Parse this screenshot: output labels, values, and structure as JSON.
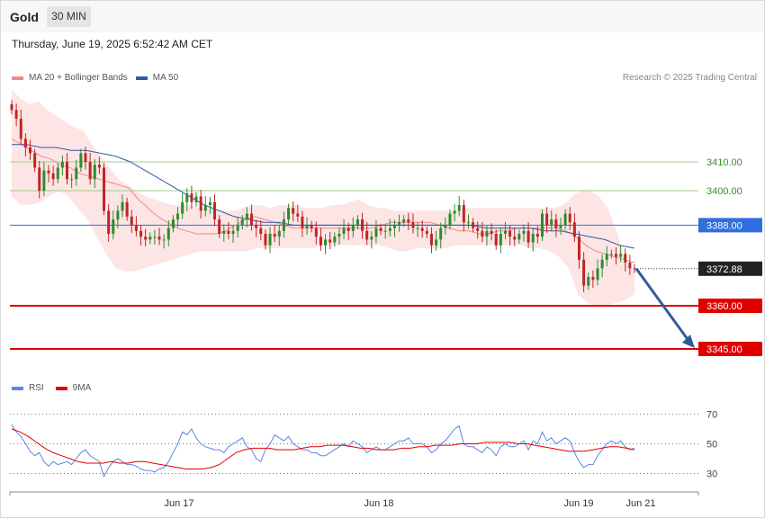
{
  "header": {
    "title": "Gold",
    "timeframe": "30 MIN",
    "timestamp": "Thursday, June 19, 2025 6:52:42 AM CET"
  },
  "legend_main": {
    "ma20_label": "MA 20 + Bollinger Bands",
    "ma50_label": "MA 50",
    "credit": "Research © 2025 Trading Central"
  },
  "legend_rsi": {
    "rsi_label": "RSI",
    "ma9_label": "9MA"
  },
  "colors": {
    "ma20": "#f08a8a",
    "ma50": "#2f5b9e",
    "band": "#fde0e0",
    "up": "#2e8b2e",
    "down": "#c02525",
    "support": "#e00000",
    "resistance": "#9ccf86",
    "pivot": "#2f6fe0",
    "rsi": "#5b86e5",
    "rsi_ma": "#e00000",
    "price_tag": "#222222",
    "arrow": "#2f5b9e"
  },
  "chart_data": [
    {
      "type": "candlestick",
      "instrument": "Gold",
      "interval": "30 MIN",
      "ylim": [
        3335,
        3435
      ],
      "x_ticks": [
        "Jun 17",
        "Jun 18",
        "Jun 19",
        "Jun 21"
      ],
      "horizontal_levels": [
        {
          "value": 3410.0,
          "label": "3410.00",
          "kind": "resistance"
        },
        {
          "value": 3400.0,
          "label": "3400.00",
          "kind": "resistance"
        },
        {
          "value": 3388.0,
          "label": "3388.00",
          "kind": "pivot"
        },
        {
          "value": 3360.0,
          "label": "3360.00",
          "kind": "support"
        },
        {
          "value": 3345.0,
          "label": "3345.00",
          "kind": "support"
        }
      ],
      "last_price": {
        "value": 3372.88,
        "label": "3372.88"
      },
      "forecast_arrow": {
        "from": 3372.88,
        "to": 3345.0
      },
      "closes": [
        3428,
        3425,
        3418,
        3415,
        3413,
        3408,
        3400,
        3407,
        3406,
        3404,
        3408,
        3410,
        3404,
        3404,
        3408,
        3413,
        3410,
        3404,
        3409,
        3408,
        3393,
        3385,
        3390,
        3393,
        3396,
        3391,
        3388,
        3386,
        3384,
        3383,
        3384,
        3384,
        3383,
        3383,
        3387,
        3390,
        3392,
        3396,
        3399,
        3396,
        3398,
        3393,
        3395,
        3396,
        3390,
        3385,
        3386,
        3385,
        3386,
        3388,
        3390,
        3392,
        3388,
        3387,
        3385,
        3381,
        3385,
        3384,
        3386,
        3390,
        3394,
        3392,
        3391,
        3387,
        3388,
        3387,
        3384,
        3381,
        3383,
        3382,
        3384,
        3385,
        3387,
        3386,
        3388,
        3390,
        3386,
        3383,
        3384,
        3387,
        3386,
        3386,
        3387,
        3388,
        3389,
        3390,
        3389,
        3387,
        3387,
        3386,
        3385,
        3381,
        3383,
        3387,
        3388,
        3392,
        3393,
        3395,
        3389,
        3389,
        3387,
        3386,
        3384,
        3386,
        3385,
        3381,
        3385,
        3386,
        3384,
        3383,
        3385,
        3386,
        3382,
        3385,
        3384,
        3392,
        3388,
        3390,
        3387,
        3388,
        3392,
        3389,
        3384,
        3376,
        3367,
        3370,
        3369,
        3373,
        3376,
        3378,
        3378,
        3377,
        3378,
        3375,
        3373,
        3372.88
      ],
      "ma20": [
        3418,
        3416,
        3414,
        3412,
        3411,
        3409,
        3408,
        3406,
        3405,
        3404,
        3403,
        3402,
        3401,
        3397,
        3394,
        3391,
        3389,
        3387,
        3386,
        3385,
        3385,
        3385,
        3386,
        3388,
        3390,
        3391,
        3390,
        3389,
        3388,
        3387,
        3387,
        3387,
        3387,
        3387,
        3387,
        3387,
        3387,
        3387,
        3388,
        3389,
        3389,
        3389,
        3389,
        3389,
        3388,
        3387,
        3386,
        3386,
        3385,
        3385,
        3386,
        3386,
        3387,
        3387,
        3387,
        3387,
        3387,
        3386,
        3384,
        3381,
        3379,
        3378,
        3377,
        3376,
        3375
      ],
      "ma50": [
        3416,
        3416,
        3415,
        3415,
        3414,
        3414,
        3413,
        3412,
        3410,
        3407,
        3404,
        3401,
        3398,
        3395,
        3393,
        3391,
        3390,
        3389,
        3389,
        3388,
        3388,
        3388,
        3388,
        3388,
        3388,
        3388,
        3388,
        3388,
        3388,
        3388,
        3388,
        3388,
        3387,
        3387,
        3387,
        3387,
        3386,
        3386,
        3385,
        3384,
        3383,
        3381,
        3380
      ],
      "bb_upper": [
        3435,
        3432,
        3430,
        3431,
        3428,
        3426,
        3424,
        3422,
        3421,
        3416,
        3412,
        3408,
        3404,
        3402,
        3400,
        3398,
        3397,
        3396,
        3395,
        3395,
        3395,
        3394,
        3394,
        3393,
        3393,
        3393,
        3394,
        3395,
        3395,
        3394,
        3395,
        3395,
        3395,
        3394,
        3394,
        3394,
        3395,
        3395,
        3396,
        3397,
        3395,
        3394,
        3394,
        3393,
        3393,
        3393,
        3393,
        3393,
        3393,
        3393,
        3393,
        3394,
        3394,
        3394,
        3394,
        3394,
        3394,
        3394,
        3394,
        3394,
        3394,
        3394,
        3395,
        3398,
        3400,
        3400,
        3398,
        3394,
        3386,
        3375,
        3372
      ],
      "bb_lower": [
        3398,
        3395,
        3395,
        3396,
        3398,
        3400,
        3398,
        3394,
        3390,
        3384,
        3378,
        3373,
        3372,
        3372,
        3373,
        3374,
        3375,
        3376,
        3377,
        3378,
        3379,
        3379,
        3379,
        3379,
        3379,
        3379,
        3380,
        3380,
        3380,
        3380,
        3380,
        3380,
        3380,
        3381,
        3381,
        3381,
        3381,
        3381,
        3381,
        3381,
        3380,
        3379,
        3379,
        3380,
        3380,
        3380,
        3380,
        3381,
        3381,
        3381,
        3381,
        3381,
        3381,
        3381,
        3381,
        3380,
        3380,
        3379,
        3377,
        3373,
        3364,
        3361,
        3360,
        3360,
        3361,
        3362,
        3364
      ]
    },
    {
      "type": "line",
      "title": "RSI",
      "ylim": [
        20,
        80
      ],
      "y_ticks": [
        30,
        50,
        70
      ],
      "series": [
        {
          "name": "RSI",
          "values": [
            63,
            58,
            55,
            50,
            45,
            42,
            44,
            38,
            35,
            38,
            36,
            37,
            38,
            36,
            40,
            44,
            46,
            42,
            40,
            38,
            28,
            34,
            38,
            40,
            38,
            36,
            36,
            35,
            33,
            32,
            32,
            31,
            33,
            34,
            38,
            44,
            50,
            58,
            56,
            60,
            54,
            50,
            48,
            47,
            46,
            46,
            44,
            48,
            50,
            52,
            54,
            48,
            46,
            40,
            38,
            46,
            50,
            56,
            54,
            52,
            55,
            50,
            48,
            46,
            46,
            44,
            44,
            42,
            42,
            44,
            46,
            48,
            50,
            48,
            52,
            50,
            48,
            44,
            46,
            48,
            46,
            46,
            48,
            50,
            52,
            52,
            54,
            50,
            50,
            50,
            48,
            44,
            46,
            50,
            52,
            56,
            60,
            62,
            50,
            48,
            48,
            46,
            44,
            48,
            46,
            42,
            48,
            50,
            48,
            48,
            50,
            52,
            46,
            52,
            50,
            58,
            52,
            54,
            50,
            52,
            54,
            52,
            44,
            38,
            34,
            36,
            36,
            42,
            46,
            50,
            52,
            50,
            52,
            48,
            46,
            47
          ]
        },
        {
          "name": "9MA",
          "values": [
            60,
            58,
            55,
            51,
            47,
            44,
            42,
            40,
            38,
            37,
            37,
            37,
            38,
            37,
            37,
            38,
            38,
            37,
            36,
            35,
            34,
            33,
            33,
            33,
            34,
            36,
            40,
            44,
            46,
            47,
            47,
            47,
            46,
            46,
            46,
            47,
            48,
            48,
            49,
            49,
            49,
            48,
            47,
            47,
            46,
            46,
            46,
            47,
            47,
            48,
            48,
            49,
            49,
            49,
            50,
            50,
            50,
            51,
            51,
            51,
            51,
            50,
            50,
            49,
            48,
            47,
            46,
            45,
            45,
            45,
            46,
            47,
            48,
            48,
            47,
            46
          ]
        }
      ]
    }
  ]
}
